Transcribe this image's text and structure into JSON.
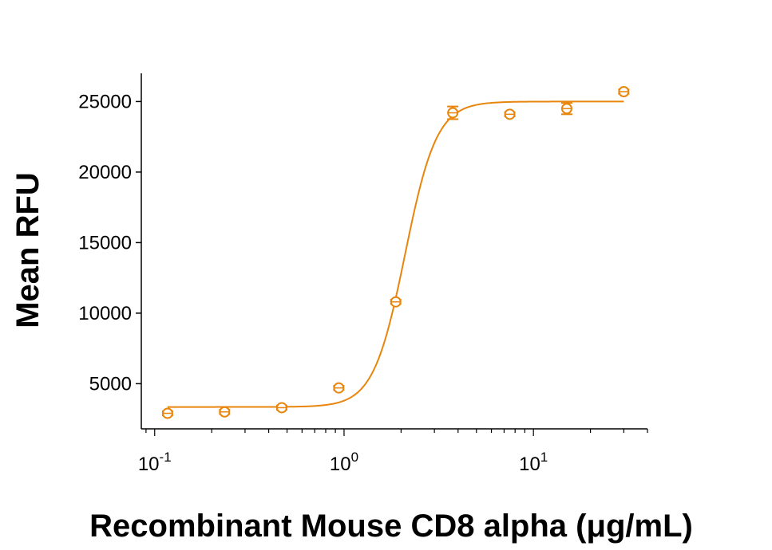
{
  "chart_data": {
    "type": "scatter",
    "title": "",
    "xlabel": "Recombinant Mouse CD8 alpha (μg/mL)",
    "ylabel": "Mean RFU",
    "x_scale": "log10",
    "xlim": [
      0.085,
      40
    ],
    "ylim": [
      1800,
      27000
    ],
    "grid": false,
    "legend": "none",
    "color": "#e8850c",
    "x_ticks": [
      {
        "value": 0.1,
        "base": "10",
        "exp": "-1"
      },
      {
        "value": 1,
        "base": "10",
        "exp": "0"
      },
      {
        "value": 10,
        "base": "10",
        "exp": "1"
      }
    ],
    "y_ticks": [
      {
        "value": 5000,
        "label": "5000"
      },
      {
        "value": 10000,
        "label": "10000"
      },
      {
        "value": 15000,
        "label": "15000"
      },
      {
        "value": 20000,
        "label": "20000"
      },
      {
        "value": 25000,
        "label": "25000"
      }
    ],
    "series": [
      {
        "points": [
          {
            "x": 0.117,
            "y": 2900,
            "err": 150
          },
          {
            "x": 0.234,
            "y": 3000,
            "err": 150
          },
          {
            "x": 0.469,
            "y": 3300,
            "err": 150
          },
          {
            "x": 0.938,
            "y": 4700,
            "err": 150
          },
          {
            "x": 1.875,
            "y": 10800,
            "err": 150
          },
          {
            "x": 3.75,
            "y": 24200,
            "err": 450
          },
          {
            "x": 7.5,
            "y": 24100,
            "err": 150
          },
          {
            "x": 15,
            "y": 24500,
            "err": 400
          },
          {
            "x": 30,
            "y": 25700,
            "err": 150
          }
        ],
        "fit": {
          "model": "4PL",
          "bottom": 3350,
          "top": 25000,
          "ec50": 2.1,
          "hill": 5.2,
          "x_range": [
            0.117,
            30
          ]
        }
      }
    ]
  }
}
